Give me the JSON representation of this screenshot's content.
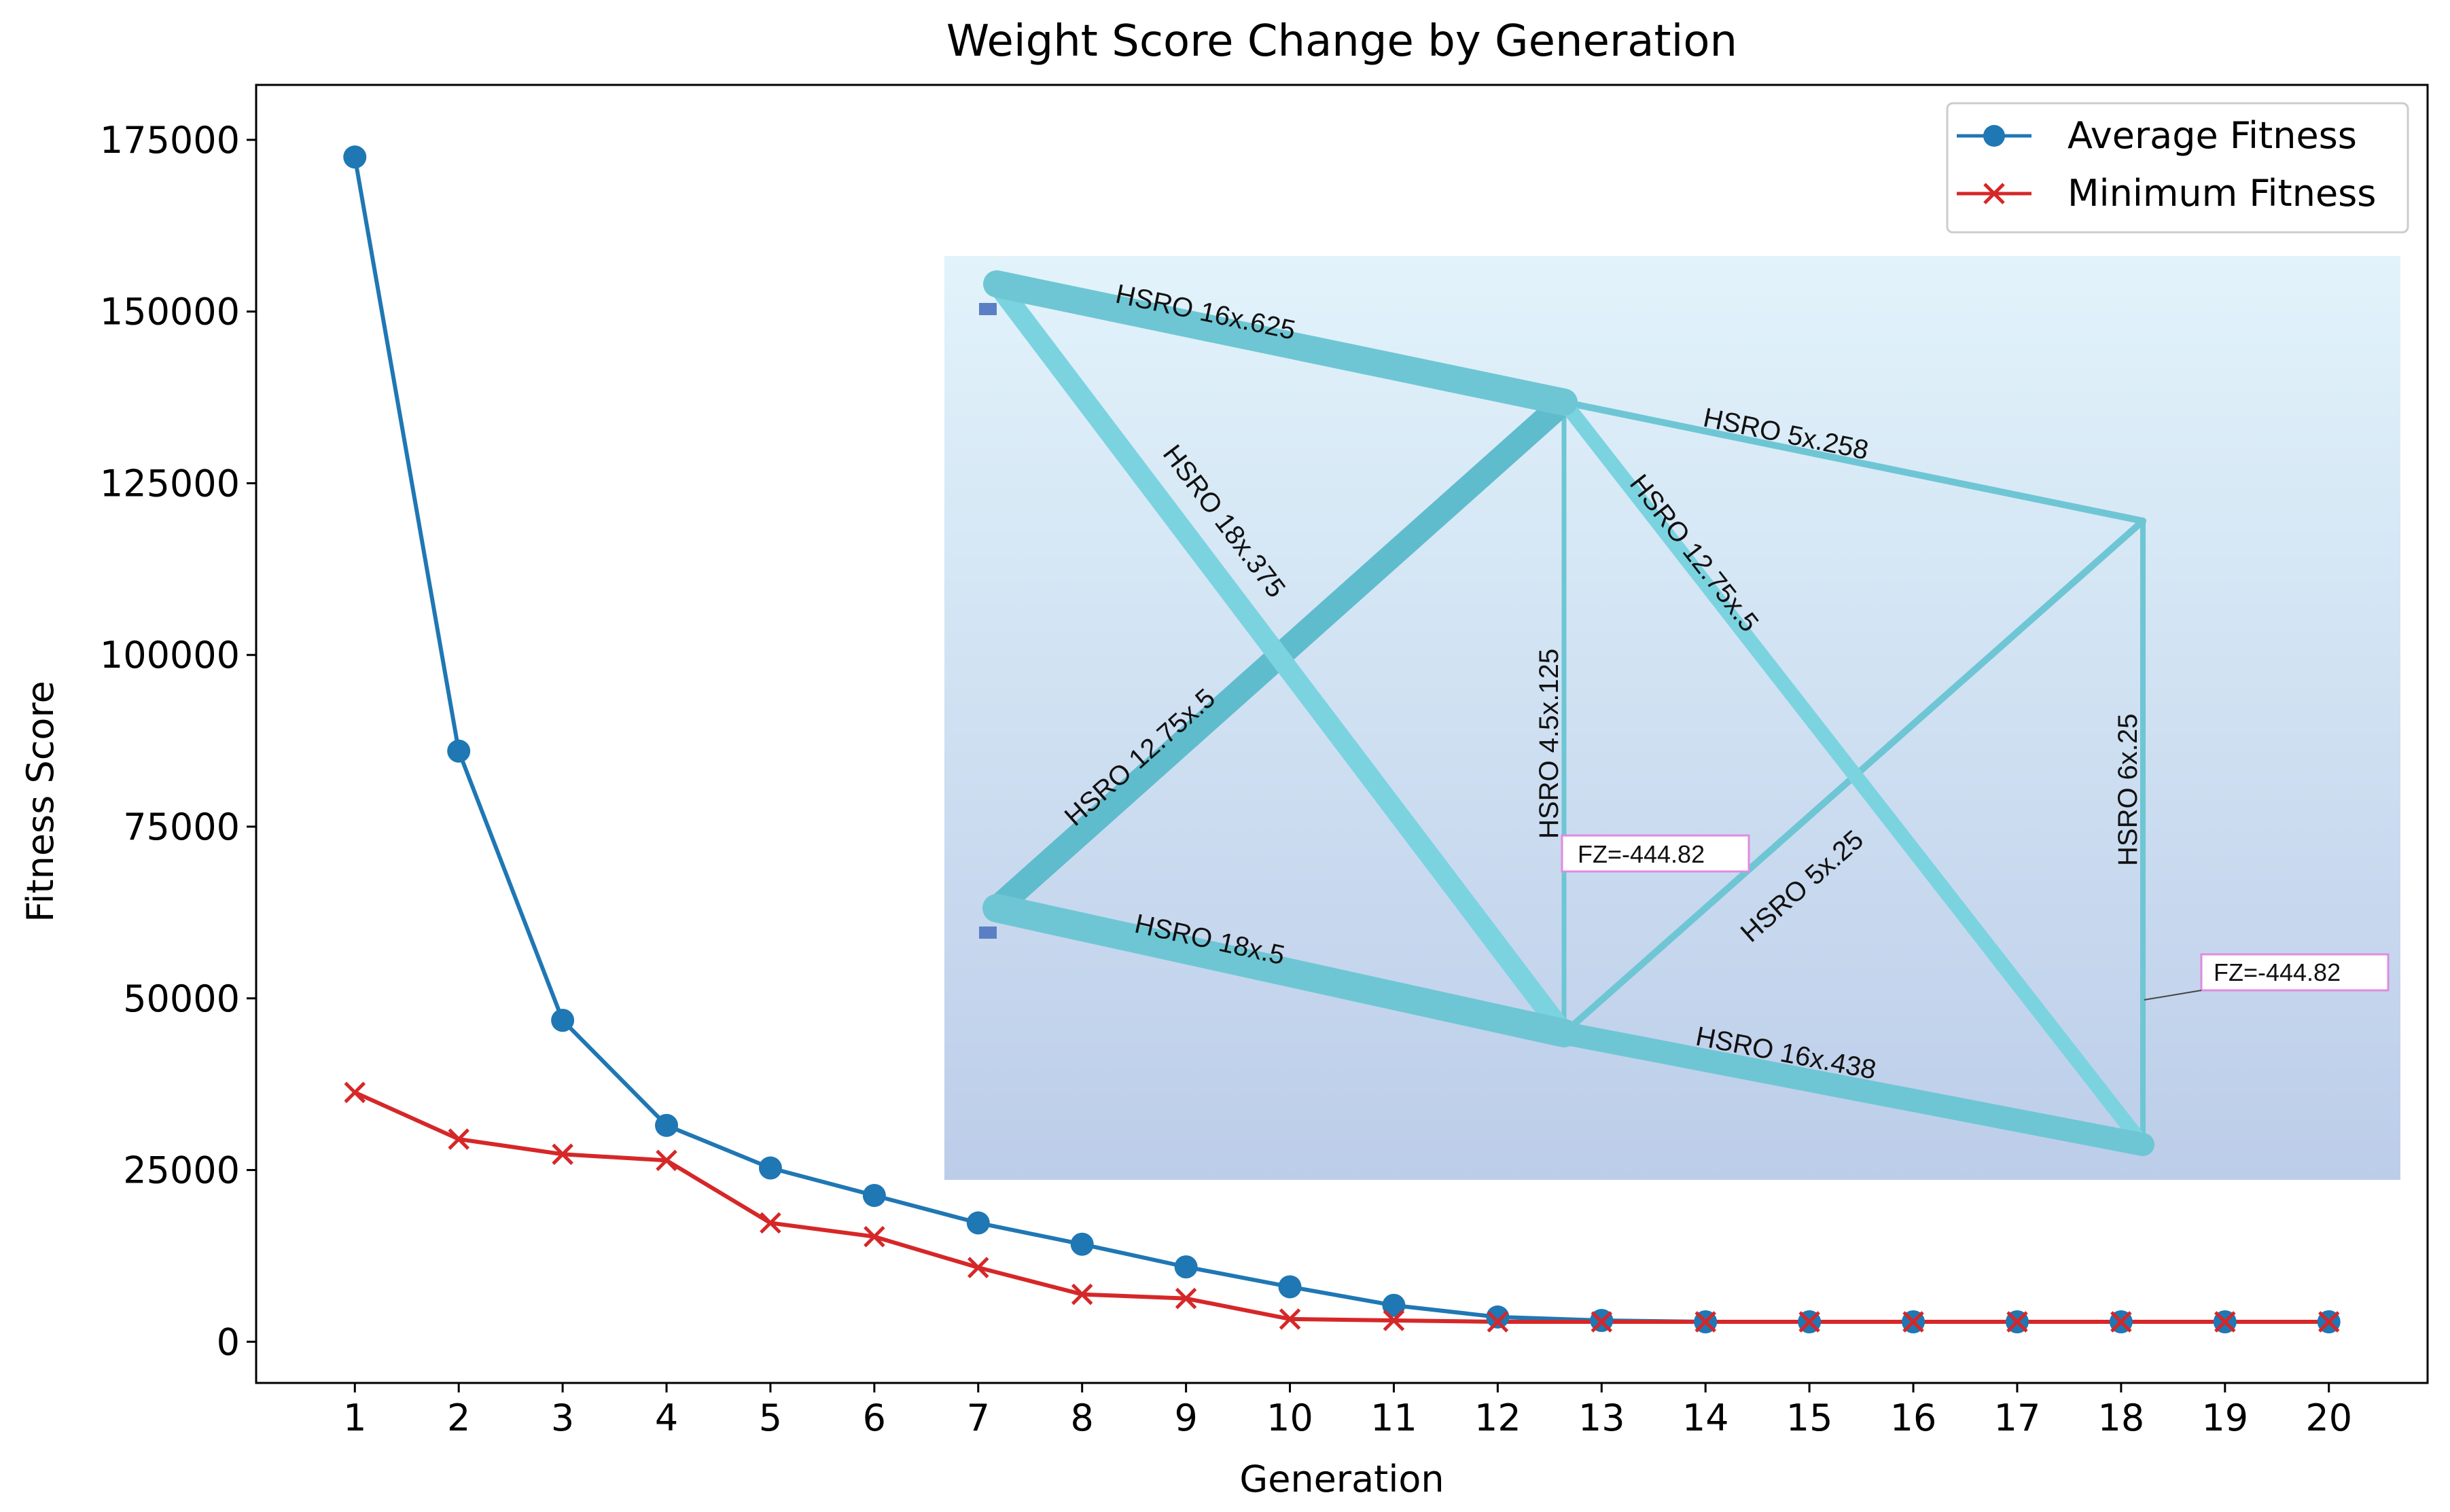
{
  "chart_data": {
    "type": "line",
    "title": "Weight Score Change by Generation",
    "xlabel": "Generation",
    "ylabel": "Fitness Score",
    "x": [
      1,
      2,
      3,
      4,
      5,
      6,
      7,
      8,
      9,
      10,
      11,
      12,
      13,
      14,
      15,
      16,
      17,
      18,
      19,
      20
    ],
    "xticks": [
      "1",
      "2",
      "3",
      "4",
      "5",
      "6",
      "7",
      "8",
      "9",
      "10",
      "11",
      "12",
      "13",
      "14",
      "15",
      "16",
      "17",
      "18",
      "19",
      "20"
    ],
    "yticks": [
      {
        "value": 0,
        "label": "0"
      },
      {
        "value": 25000,
        "label": "25000"
      },
      {
        "value": 50000,
        "label": "50000"
      },
      {
        "value": 75000,
        "label": "75000"
      },
      {
        "value": 100000,
        "label": "100000"
      },
      {
        "value": 125000,
        "label": "125000"
      },
      {
        "value": 150000,
        "label": "150000"
      },
      {
        "value": 175000,
        "label": "175000"
      }
    ],
    "xlim": [
      0.05,
      20.95
    ],
    "ylim": [
      -6000,
      183000
    ],
    "legend_position": "top-right",
    "series": [
      {
        "name": "Average Fitness",
        "marker": "circle",
        "color": "#1f77b4",
        "values": [
          172500,
          86000,
          46800,
          31500,
          25300,
          21300,
          17300,
          14200,
          10900,
          8000,
          5300,
          3600,
          3100,
          2900,
          2900,
          2900,
          2900,
          2900,
          2900,
          2900
        ]
      },
      {
        "name": "Minimum Fitness",
        "marker": "x",
        "color": "#d62728",
        "values": [
          36300,
          29500,
          27300,
          26400,
          17300,
          15300,
          10800,
          6900,
          6300,
          3300,
          3100,
          2900,
          2900,
          2900,
          2900,
          2900,
          2900,
          2900,
          2900,
          2900
        ]
      }
    ]
  },
  "inset": {
    "members": [
      {
        "id": "top1",
        "label": "HSRO 16x.625"
      },
      {
        "id": "top2",
        "label": "HSRO 5x.258"
      },
      {
        "id": "bot1",
        "label": "HSRO 18x.5"
      },
      {
        "id": "bot2",
        "label": "HSRO 16x.438"
      },
      {
        "id": "diag1",
        "label": "HSRO 18x.375"
      },
      {
        "id": "diag2",
        "label": "HSRO 12.75x.5"
      },
      {
        "id": "vert1",
        "label": "HSRO 4.5x.125"
      },
      {
        "id": "diag3",
        "label": "HSRO 12.75x.5"
      },
      {
        "id": "diag4",
        "label": "HSRO 5x.25"
      },
      {
        "id": "vert2",
        "label": "HSRO 6x.25"
      }
    ],
    "loads": [
      {
        "id": "load1",
        "label": "FZ=-444.82"
      },
      {
        "id": "load2",
        "label": "FZ=-444.82"
      }
    ]
  }
}
